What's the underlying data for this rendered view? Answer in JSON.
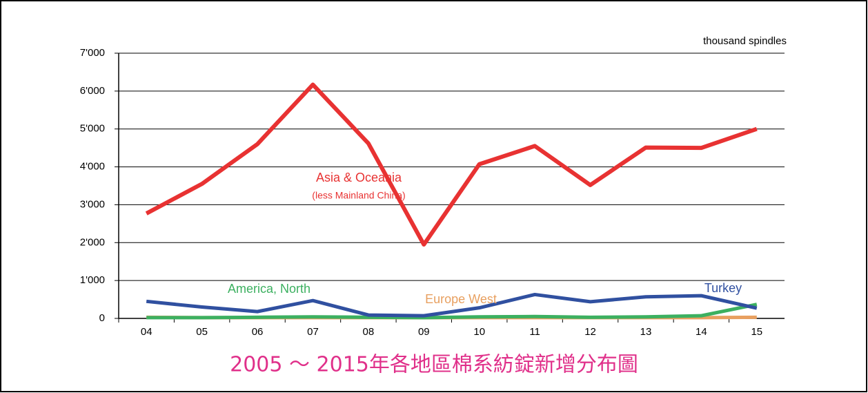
{
  "chart_data": {
    "type": "line",
    "unit_label": "thousand spindles",
    "caption": "2005 ～ 2015年各地區棉系紡錠新增分布圖",
    "categories": [
      "04",
      "05",
      "06",
      "07",
      "08",
      "09",
      "10",
      "11",
      "12",
      "13",
      "14",
      "15"
    ],
    "series": [
      {
        "name": "Asia & Oceania",
        "annotation": "(less Mainland China)",
        "color": "#e83232",
        "values": [
          2770,
          3550,
          4600,
          6170,
          4620,
          1950,
          4070,
          4550,
          3520,
          4510,
          4500,
          5000
        ]
      },
      {
        "name": "Turkey",
        "color": "#3050a0",
        "values": [
          450,
          300,
          180,
          470,
          90,
          70,
          280,
          630,
          440,
          570,
          600,
          270
        ]
      },
      {
        "name": "America, North",
        "color": "#3cb060",
        "values": [
          20,
          20,
          30,
          40,
          30,
          20,
          40,
          50,
          30,
          40,
          70,
          370
        ]
      },
      {
        "name": "Europe West",
        "color": "#e8a060",
        "values": [
          30,
          20,
          20,
          20,
          20,
          20,
          20,
          20,
          20,
          20,
          20,
          30
        ]
      }
    ],
    "ylim": [
      0,
      7000
    ],
    "yticks": [
      0,
      {
        "value": 1000,
        "label": "1'000"
      },
      {
        "value": 2000,
        "label": "2'000"
      },
      {
        "value": 3000,
        "label": "3'000"
      },
      {
        "value": 4000,
        "label": "4'000"
      },
      {
        "value": 5000,
        "label": "5'000"
      },
      {
        "value": 6000,
        "label": "6'000"
      },
      {
        "value": 7000,
        "label": "7'000"
      }
    ],
    "grid": true
  }
}
